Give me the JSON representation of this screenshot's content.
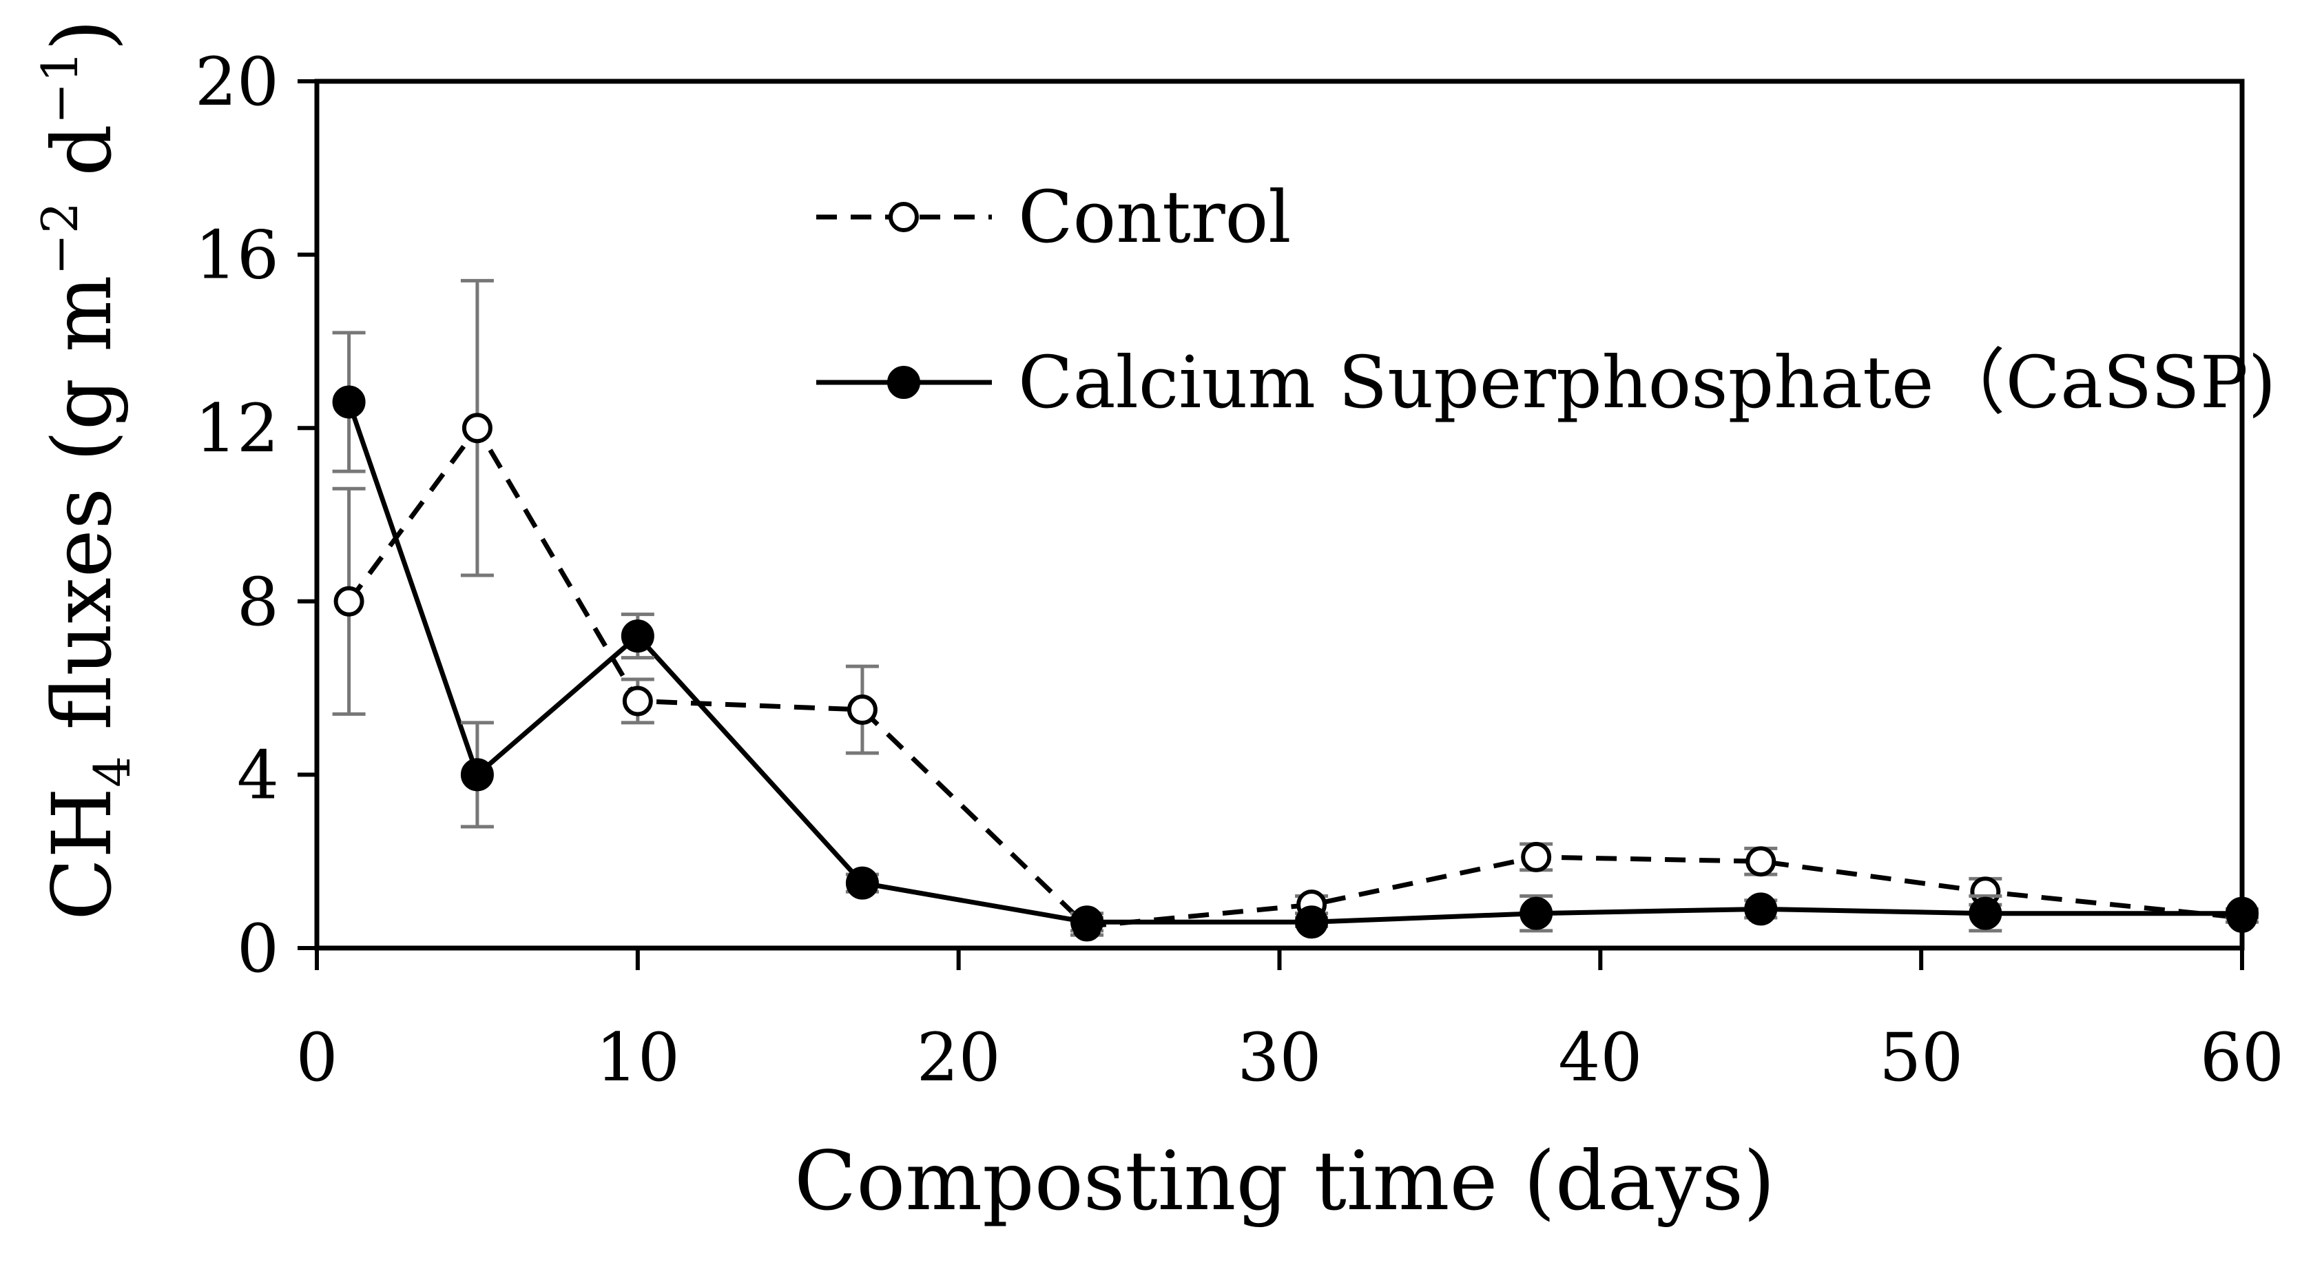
{
  "chart_data": {
    "type": "line",
    "title": "",
    "xlabel": "Composting time (days)",
    "ylabel_parts": {
      "base": "CH",
      "sub": "4",
      "text1": " fluxes (g m",
      "sup1": "−2",
      "text2": " d",
      "sup2": "−1",
      "text3": ")"
    },
    "xlim": [
      0,
      60
    ],
    "ylim": [
      0,
      20
    ],
    "xticks": [
      0,
      10,
      20,
      30,
      40,
      50,
      60
    ],
    "yticks": [
      0,
      4,
      8,
      12,
      16,
      20
    ],
    "x": [
      1,
      5,
      10,
      17,
      24,
      31,
      38,
      45,
      52,
      60
    ],
    "legend_position": "top-center",
    "series": [
      {
        "name": "Control",
        "style": "dashed",
        "marker": "open-circle",
        "values": [
          8.0,
          12.0,
          5.7,
          5.5,
          0.5,
          1.0,
          2.1,
          2.0,
          1.3,
          0.7
        ],
        "errors": [
          2.6,
          3.4,
          0.5,
          1.0,
          0.2,
          0.2,
          0.3,
          0.3,
          0.3,
          0.1
        ]
      },
      {
        "name": "Calcium Superphosphate（CaSSP)",
        "style": "solid",
        "marker": "filled-circle",
        "values": [
          12.6,
          4.0,
          7.2,
          1.5,
          0.6,
          0.6,
          0.8,
          0.9,
          0.8,
          0.8
        ],
        "errors": [
          1.6,
          1.2,
          0.5,
          0.2,
          0.2,
          0.1,
          0.4,
          0.2,
          0.4,
          0.1
        ]
      }
    ],
    "colors": {
      "axis": "#000000",
      "line": "#000000",
      "error_bar": "#777777",
      "marker_fill_open": "#ffffff"
    }
  }
}
